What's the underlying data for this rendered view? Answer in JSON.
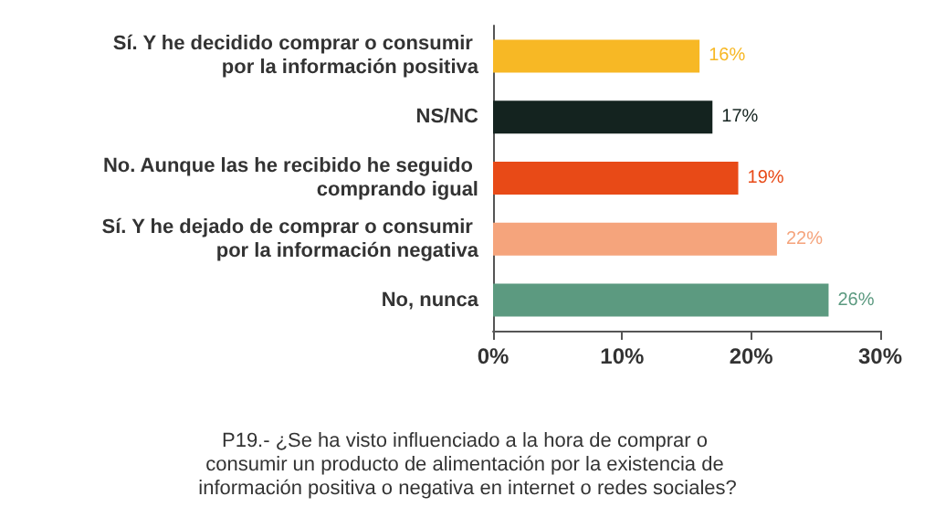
{
  "chart_data": {
    "type": "bar",
    "orientation": "horizontal",
    "title": "P19.- ¿Se ha visto influenciado a la hora de comprar o consumir un producto de alimentación por la existencia de información positiva o negativa en internet o redes sociales?",
    "categories": [
      "Sí. Y he decidido comprar o consumir por la información positiva",
      "NS/NC",
      "No. Aunque las he recibido he seguido comprando igual",
      "Sí. Y he dejado de comprar o consumir por la información negativa",
      "No, nunca"
    ],
    "values": [
      16,
      17,
      19,
      22,
      26
    ],
    "colors": [
      "#f7b825",
      "#14231f",
      "#e84a17",
      "#f5a47c",
      "#5c9a80"
    ],
    "xlim": [
      0,
      30
    ],
    "xticks": [
      {
        "value": 0,
        "label": "0%"
      },
      {
        "value": 10,
        "label": "10%"
      },
      {
        "value": 20,
        "label": "20%"
      },
      {
        "value": 30,
        "label": "30%"
      }
    ],
    "value_labels": [
      "16%",
      "17%",
      "19%",
      "22%",
      "26%"
    ],
    "grid": false
  }
}
